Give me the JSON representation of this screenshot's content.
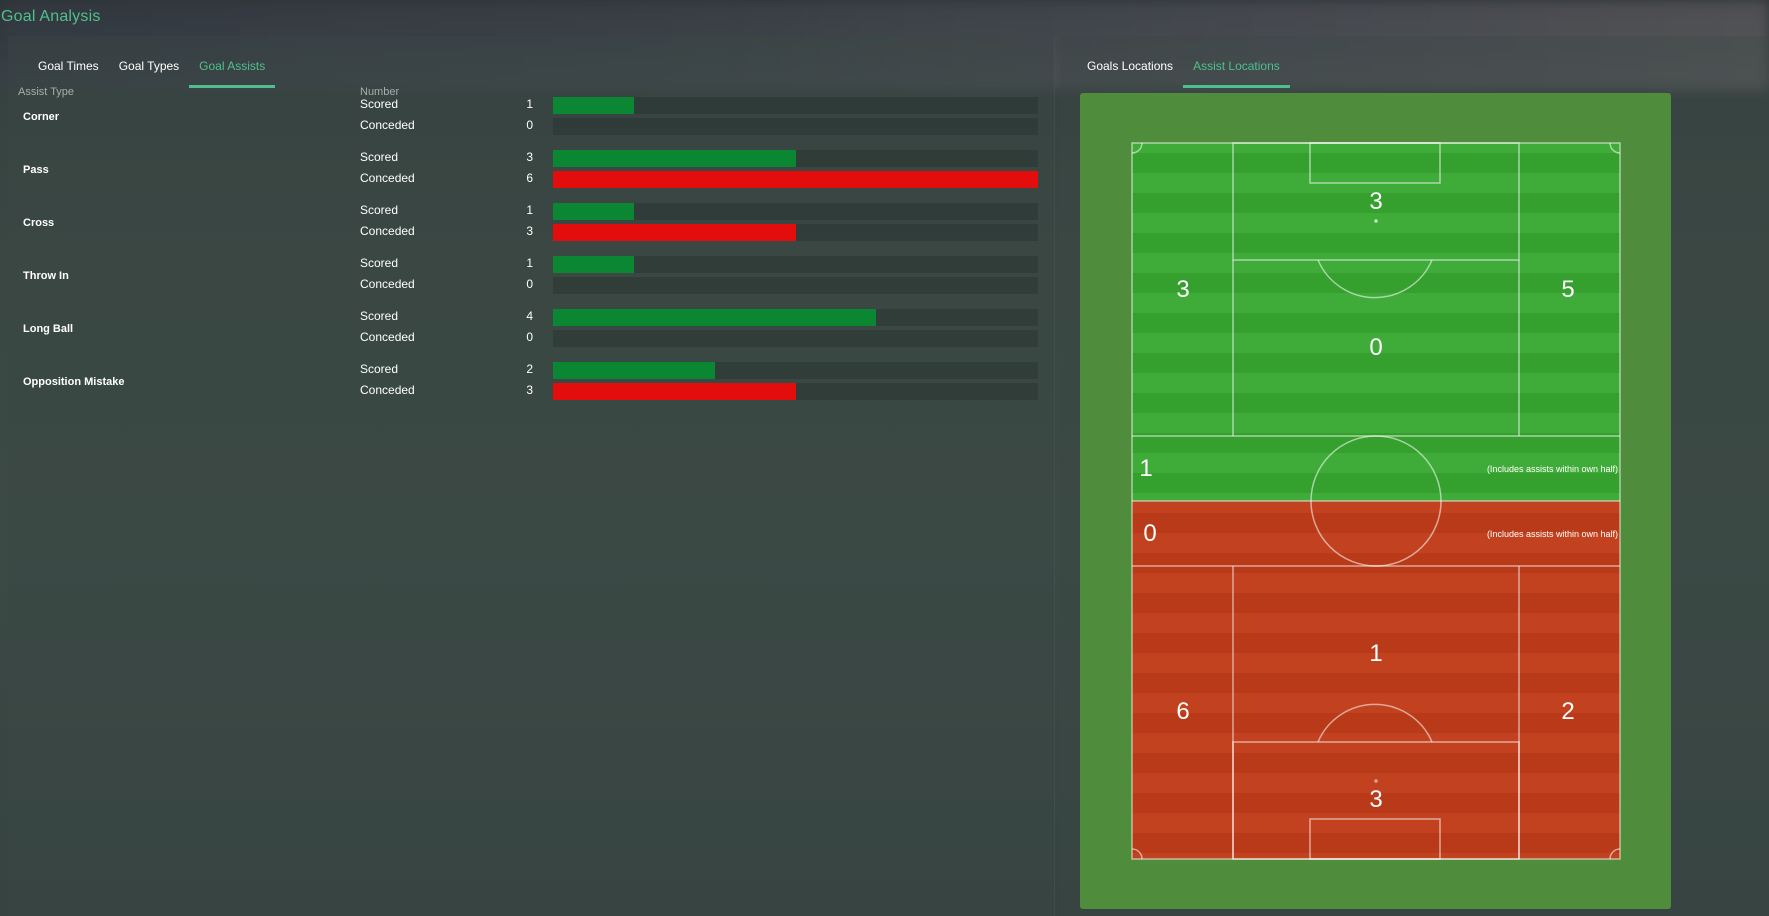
{
  "page_title": "Goal Analysis",
  "left_tabs": [
    {
      "label": "Goal Times",
      "active": false
    },
    {
      "label": "Goal Types",
      "active": false
    },
    {
      "label": "Goal Assists",
      "active": true
    }
  ],
  "columns": {
    "assist_type": "Assist Type",
    "number": "Number"
  },
  "assists": [
    {
      "type": "Corner",
      "scored_label": "Scored",
      "scored": 1,
      "conceded_label": "Conceded",
      "conceded": 0
    },
    {
      "type": "Pass",
      "scored_label": "Scored",
      "scored": 3,
      "conceded_label": "Conceded",
      "conceded": 6
    },
    {
      "type": "Cross",
      "scored_label": "Scored",
      "scored": 1,
      "conceded_label": "Conceded",
      "conceded": 3
    },
    {
      "type": "Throw In",
      "scored_label": "Scored",
      "scored": 1,
      "conceded_label": "Conceded",
      "conceded": 0
    },
    {
      "type": "Long Ball",
      "scored_label": "Scored",
      "scored": 4,
      "conceded_label": "Conceded",
      "conceded": 0
    },
    {
      "type": "Opposition Mistake",
      "scored_label": "Scored",
      "scored": 2,
      "conceded_label": "Conceded",
      "conceded": 3
    }
  ],
  "bar_max": 6,
  "right_tabs": [
    {
      "label": "Goals Locations",
      "active": false
    },
    {
      "label": "Assist Locations",
      "active": true
    }
  ],
  "pitch": {
    "scored": {
      "box_center": "3",
      "left_wing": "3",
      "right_wing": "5",
      "central": "0",
      "own_half": "1",
      "own_half_note": "(Includes assists within own half)"
    },
    "conceded": {
      "own_half": "0",
      "own_half_note": "(Includes assists within own half)",
      "central": "1",
      "left_wing": "6",
      "right_wing": "2",
      "box_center": "3"
    }
  },
  "colors": {
    "accent": "#4fc08d",
    "scored_bar": "#0b8734",
    "conceded_bar": "#e30d0d",
    "pitch_green_light": "#3fab38",
    "pitch_green_dark": "#35a02e",
    "pitch_red_light": "#c2421f",
    "pitch_red_dark": "#b83a18"
  }
}
